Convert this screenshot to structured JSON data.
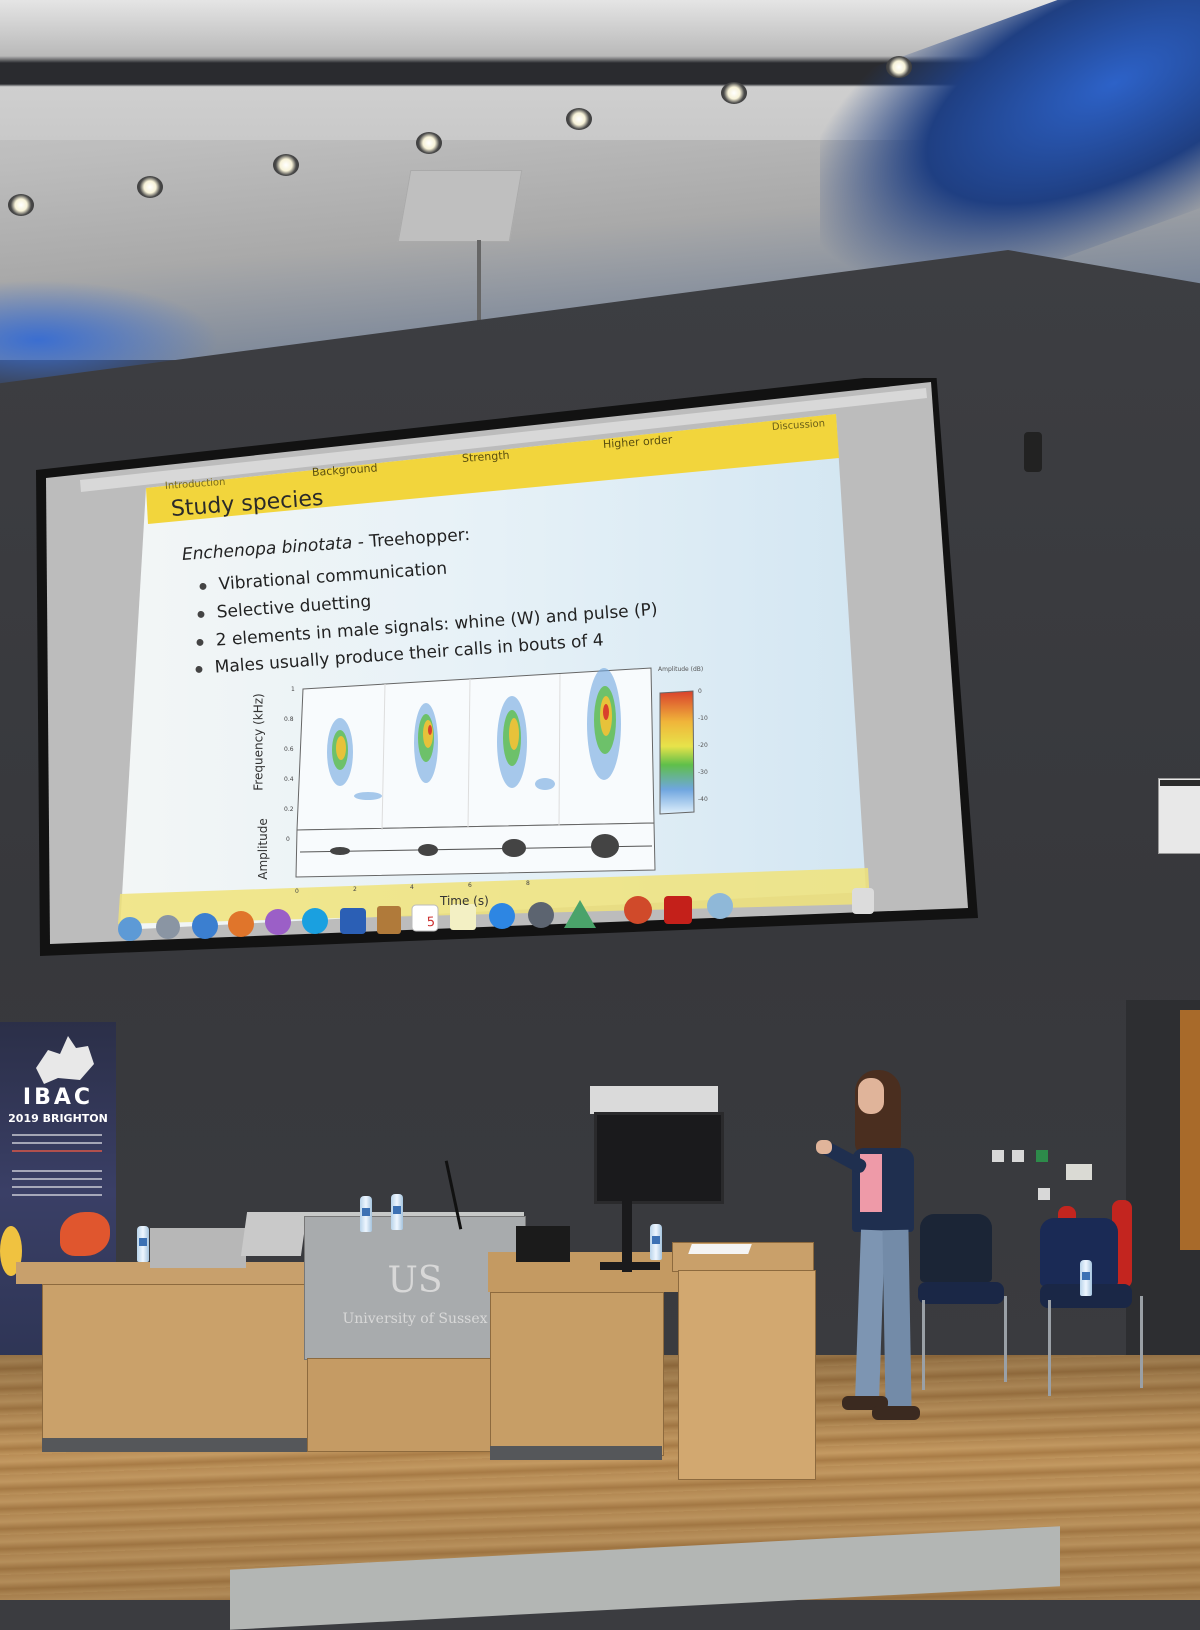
{
  "slide": {
    "nav": [
      "Introduction",
      "Background",
      "Strength",
      "Higher order",
      "Discussion"
    ],
    "title": "Study species",
    "subtitle_species": "Enchenopa binotata",
    "subtitle_rest": " - Treehopper:",
    "bullets": [
      "Vibrational communication",
      "Selective duetting",
      "2 elements in male signals: whine (W) and pulse (P)",
      "Males usually produce their calls in bouts of 4"
    ],
    "figure": {
      "ylabel_top": "Frequency (kHz)",
      "ylabel_bottom": "Amplitude",
      "xlabel": "Time (s)",
      "y_ticks": [
        "1",
        "0.8",
        "0.6",
        "0.4",
        "0.2",
        "0"
      ],
      "x_ticks": [
        "0",
        "2",
        "4",
        "6",
        "8"
      ],
      "colorbar_title": "Amplitude (dB)",
      "colorbar_ticks": [
        "0",
        "-10",
        "-20",
        "-30",
        "-40"
      ]
    }
  },
  "dock_icons": [
    "finder-icon",
    "launchpad-icon",
    "safari-icon",
    "firefox-icon",
    "app-icon",
    "skype-icon",
    "word-icon",
    "notes-icon",
    "calendar-icon",
    "stickies-icon",
    "appstore-icon",
    "activity-icon",
    "maps-icon",
    "powerpoint-icon",
    "acrobat-icon",
    "downloads-icon",
    "trash-icon"
  ],
  "dock_calendar_day": "5",
  "banner": {
    "title": "IBAC",
    "subtitle": "2019 BRIGHTON"
  },
  "lectern": {
    "logo": "US",
    "name": "University of Sussex"
  },
  "colors": {
    "slide_header": "#f2d53c",
    "slide_bg": "#eaf3f8",
    "wall": "#3b3c40",
    "floor": "#c0965e"
  }
}
